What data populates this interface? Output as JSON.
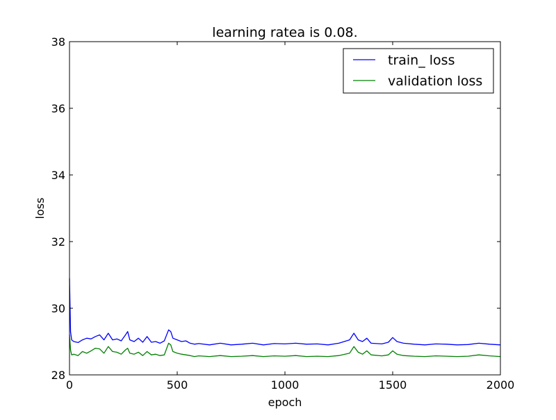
{
  "chart_data": {
    "type": "line",
    "title": "learning ratea is 0.08.",
    "xlabel": "epoch",
    "ylabel": "loss",
    "xlim": [
      0,
      2000
    ],
    "ylim": [
      28,
      38
    ],
    "xticks": [
      0,
      500,
      1000,
      1500,
      2000
    ],
    "yticks": [
      28,
      30,
      32,
      34,
      36,
      38
    ],
    "xtick_labels": [
      "0",
      "500",
      "1000",
      "1500",
      "2000"
    ],
    "ytick_labels": [
      "28",
      "30",
      "32",
      "34",
      "36",
      "38"
    ],
    "grid": false,
    "legend_position": "top-right",
    "series": [
      {
        "name": "train_ loss",
        "color": "#0000ff",
        "x": [
          0,
          5,
          10,
          20,
          40,
          60,
          80,
          100,
          120,
          140,
          160,
          180,
          200,
          220,
          240,
          260,
          270,
          280,
          300,
          320,
          340,
          360,
          380,
          400,
          420,
          440,
          460,
          470,
          480,
          500,
          520,
          540,
          560,
          580,
          600,
          650,
          700,
          750,
          800,
          850,
          900,
          950,
          1000,
          1050,
          1100,
          1150,
          1200,
          1250,
          1300,
          1320,
          1340,
          1360,
          1380,
          1400,
          1450,
          1480,
          1500,
          1520,
          1550,
          1600,
          1650,
          1700,
          1750,
          1800,
          1850,
          1900,
          1950,
          2000
        ],
        "y": [
          30.9,
          29.3,
          29.05,
          29.0,
          28.97,
          29.05,
          29.1,
          29.08,
          29.15,
          29.2,
          29.05,
          29.25,
          29.05,
          29.08,
          29.02,
          29.2,
          29.3,
          29.05,
          29.0,
          29.1,
          28.98,
          29.15,
          28.98,
          29.0,
          28.95,
          29.02,
          29.35,
          29.3,
          29.1,
          29.05,
          29.0,
          29.02,
          28.95,
          28.92,
          28.94,
          28.9,
          28.95,
          28.9,
          28.92,
          28.95,
          28.9,
          28.94,
          28.93,
          28.95,
          28.92,
          28.93,
          28.9,
          28.95,
          29.05,
          29.25,
          29.05,
          29.0,
          29.1,
          28.95,
          28.93,
          28.98,
          29.12,
          29.0,
          28.95,
          28.92,
          28.9,
          28.93,
          28.92,
          28.9,
          28.91,
          28.95,
          28.92,
          28.9
        ]
      },
      {
        "name": "validation loss",
        "color": "#008000",
        "x": [
          0,
          5,
          10,
          20,
          40,
          60,
          80,
          100,
          120,
          140,
          160,
          180,
          200,
          220,
          240,
          260,
          270,
          280,
          300,
          320,
          340,
          360,
          380,
          400,
          420,
          440,
          460,
          470,
          480,
          500,
          520,
          540,
          560,
          580,
          600,
          650,
          700,
          750,
          800,
          850,
          900,
          950,
          1000,
          1050,
          1100,
          1150,
          1200,
          1250,
          1300,
          1320,
          1340,
          1360,
          1380,
          1400,
          1450,
          1480,
          1500,
          1520,
          1550,
          1600,
          1650,
          1700,
          1750,
          1800,
          1850,
          1900,
          1950,
          2000
        ],
        "y": [
          29.2,
          28.75,
          28.6,
          28.62,
          28.58,
          28.7,
          28.65,
          28.72,
          28.8,
          28.78,
          28.65,
          28.85,
          28.7,
          28.68,
          28.62,
          28.75,
          28.8,
          28.65,
          28.62,
          28.68,
          28.58,
          28.7,
          28.6,
          28.62,
          28.58,
          28.6,
          28.95,
          28.9,
          28.7,
          28.65,
          28.62,
          28.6,
          28.58,
          28.55,
          28.57,
          28.55,
          28.58,
          28.55,
          28.56,
          28.58,
          28.55,
          28.57,
          28.56,
          28.58,
          28.55,
          28.56,
          28.55,
          28.58,
          28.65,
          28.85,
          28.68,
          28.62,
          28.72,
          28.6,
          28.57,
          28.6,
          28.72,
          28.62,
          28.58,
          28.56,
          28.55,
          28.57,
          28.56,
          28.55,
          28.56,
          28.6,
          28.57,
          28.55
        ]
      }
    ]
  }
}
